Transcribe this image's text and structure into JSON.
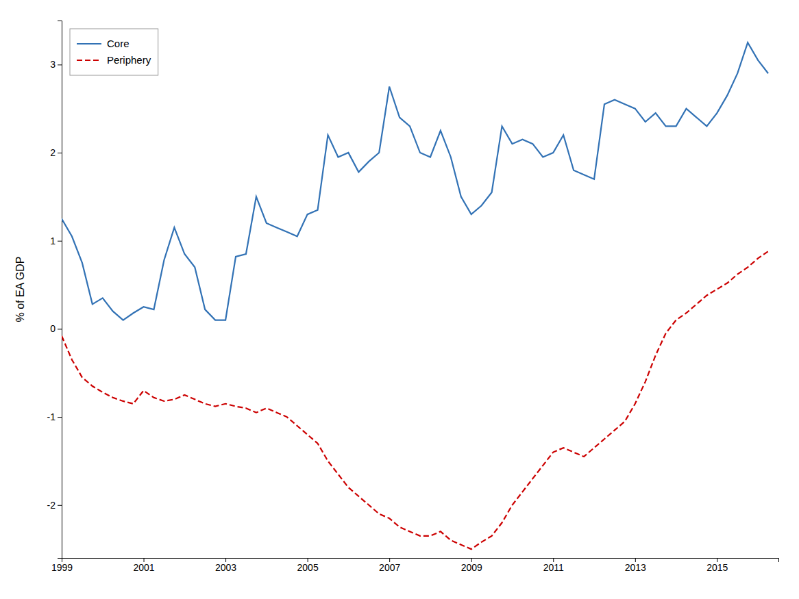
{
  "chart_data": {
    "type": "line",
    "ylabel": "% of EA GDP",
    "x": [
      1999.0,
      1999.25,
      1999.5,
      1999.75,
      2000.0,
      2000.25,
      2000.5,
      2000.75,
      2001.0,
      2001.25,
      2001.5,
      2001.75,
      2002.0,
      2002.25,
      2002.5,
      2002.75,
      2003.0,
      2003.25,
      2003.5,
      2003.75,
      2004.0,
      2004.25,
      2004.5,
      2004.75,
      2005.0,
      2005.25,
      2005.5,
      2005.75,
      2006.0,
      2006.25,
      2006.5,
      2006.75,
      2007.0,
      2007.25,
      2007.5,
      2007.75,
      2008.0,
      2008.25,
      2008.5,
      2008.75,
      2009.0,
      2009.25,
      2009.5,
      2009.75,
      2010.0,
      2010.25,
      2010.5,
      2010.75,
      2011.0,
      2011.25,
      2011.5,
      2011.75,
      2012.0,
      2012.25,
      2012.5,
      2012.75,
      2013.0,
      2013.25,
      2013.5,
      2013.75,
      2014.0,
      2014.25,
      2014.5,
      2014.75,
      2015.0,
      2015.25,
      2015.5,
      2015.75,
      2016.0,
      2016.25
    ],
    "series": [
      {
        "name": "Core",
        "color": "#3272b5",
        "line_style": "solid",
        "values": [
          1.25,
          1.05,
          0.75,
          0.28,
          0.35,
          0.2,
          0.1,
          0.18,
          0.25,
          0.22,
          0.78,
          1.15,
          0.85,
          0.7,
          0.22,
          0.1,
          0.1,
          0.82,
          0.85,
          1.5,
          1.2,
          1.15,
          1.1,
          1.05,
          1.3,
          1.35,
          2.2,
          1.95,
          2.0,
          1.78,
          1.9,
          2.0,
          2.75,
          2.4,
          2.3,
          2.0,
          1.95,
          2.25,
          1.95,
          1.5,
          1.3,
          1.4,
          1.55,
          2.3,
          2.1,
          2.15,
          2.1,
          1.95,
          2.0,
          2.2,
          1.8,
          1.75,
          1.7,
          2.55,
          2.6,
          2.55,
          2.5,
          2.35,
          2.45,
          2.3,
          2.3,
          2.5,
          2.4,
          2.3,
          2.45,
          2.65,
          2.9,
          3.25,
          3.05,
          2.9
        ]
      },
      {
        "name": "Periphery",
        "color": "#cc0000",
        "line_style": "dashed",
        "values": [
          -0.08,
          -0.35,
          -0.55,
          -0.65,
          -0.72,
          -0.78,
          -0.82,
          -0.85,
          -0.7,
          -0.78,
          -0.82,
          -0.8,
          -0.75,
          -0.8,
          -0.85,
          -0.88,
          -0.85,
          -0.88,
          -0.9,
          -0.95,
          -0.9,
          -0.95,
          -1.0,
          -1.1,
          -1.2,
          -1.3,
          -1.5,
          -1.65,
          -1.8,
          -1.9,
          -2.0,
          -2.1,
          -2.15,
          -2.25,
          -2.3,
          -2.35,
          -2.35,
          -2.3,
          -2.4,
          -2.45,
          -2.5,
          -2.42,
          -2.35,
          -2.2,
          -2.0,
          -1.85,
          -1.7,
          -1.55,
          -1.4,
          -1.35,
          -1.4,
          -1.45,
          -1.35,
          -1.25,
          -1.15,
          -1.05,
          -0.85,
          -0.6,
          -0.3,
          -0.05,
          0.1,
          0.18,
          0.28,
          0.38,
          0.45,
          0.52,
          0.62,
          0.7,
          0.8,
          0.88
        ]
      }
    ],
    "xlim": [
      1999.0,
      2016.5
    ],
    "ylim": [
      -2.6,
      3.5
    ],
    "xticks": [
      1999,
      2001,
      2003,
      2005,
      2007,
      2009,
      2011,
      2013,
      2015
    ],
    "yticks": [
      -2,
      -1,
      0,
      1,
      2,
      3
    ],
    "grid": false,
    "legend": "upper left"
  }
}
